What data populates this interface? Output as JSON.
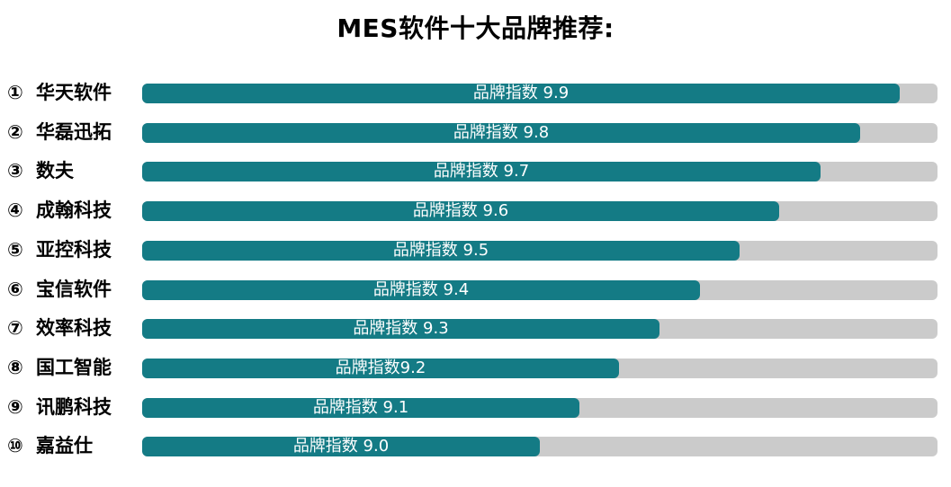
{
  "chart_data": {
    "type": "bar",
    "orientation": "horizontal",
    "title": "MES软件十大品牌推荐:",
    "xlim": [
      0,
      10
    ],
    "grid": false,
    "legend": "none",
    "categories": [
      "华天软件",
      "华磊迅拓",
      "数夫",
      "成翰科技",
      "亚控科技",
      "宝信软件",
      "效率科技",
      "国工智能",
      "讯鹏科技",
      "嘉益仕"
    ],
    "ranks": [
      "①",
      "②",
      "③",
      "④",
      "⑤",
      "⑥",
      "⑦",
      "⑧",
      "⑨",
      "⑩"
    ],
    "values": [
      9.9,
      9.8,
      9.7,
      9.6,
      9.5,
      9.4,
      9.3,
      9.2,
      9.1,
      9.0
    ],
    "data_labels": [
      "品牌指数 9.9",
      "品牌指数 9.8",
      "品牌指数 9.7",
      "品牌指数 9.6",
      "品牌指数 9.5",
      "品牌指数 9.4",
      "品牌指数 9.3",
      "品牌指数9.2",
      "品牌指数 9.1",
      "品牌指数 9.0"
    ],
    "bar_fractions": [
      0.953,
      0.903,
      0.853,
      0.801,
      0.751,
      0.701,
      0.65,
      0.6,
      0.55,
      0.5
    ],
    "colors": {
      "bar": "#147b85",
      "track": "#cbcbcb",
      "label_text": "#ffffff"
    }
  }
}
